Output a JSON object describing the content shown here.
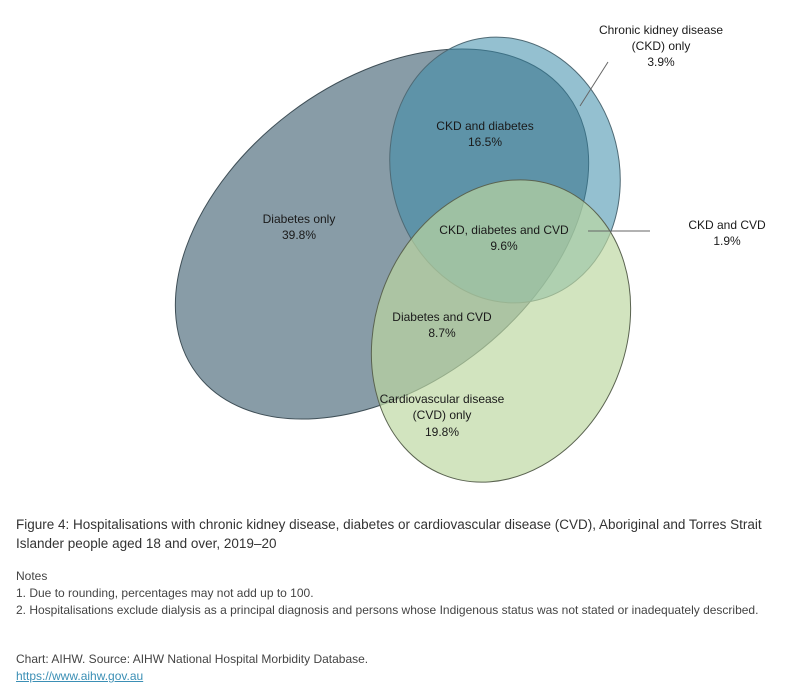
{
  "colors": {
    "diabetes": "#4f6d7d",
    "ckd": "#3d8caa",
    "cvd": "#bcd7a0"
  },
  "chart_data": {
    "type": "venn",
    "sets": [
      "Diabetes",
      "CKD",
      "CVD"
    ],
    "regions": [
      {
        "label": "Diabetes only",
        "value": "39.8%"
      },
      {
        "label": "CKD and diabetes",
        "value": "16.5%"
      },
      {
        "label_line1": "Chronic kidney disease",
        "label_line2": "(CKD) only",
        "value": "3.9%"
      },
      {
        "label": "CKD, diabetes and CVD",
        "value": "9.6%"
      },
      {
        "label": "CKD and CVD",
        "value": "1.9%"
      },
      {
        "label": "Diabetes and CVD",
        "value": "8.7%"
      },
      {
        "label_line1": "Cardiovascular disease",
        "label_line2": "(CVD) only",
        "value": "19.8%"
      }
    ]
  },
  "caption": "Figure 4: Hospitalisations with chronic kidney disease, diabetes or cardiovascular disease (CVD), Aboriginal and Torres Strait Islander people aged 18 and over, 2019–20",
  "notes": {
    "heading": "Notes",
    "items": [
      "1. Due to rounding, percentages may not add up to 100.",
      "2. Hospitalisations exclude dialysis as a principal diagnosis and persons whose Indigenous status was not stated or inadequately described."
    ]
  },
  "source": {
    "text": "Chart: AIHW. Source: AIHW National Hospital Morbidity Database.",
    "link": "https://www.aihw.gov.au"
  }
}
